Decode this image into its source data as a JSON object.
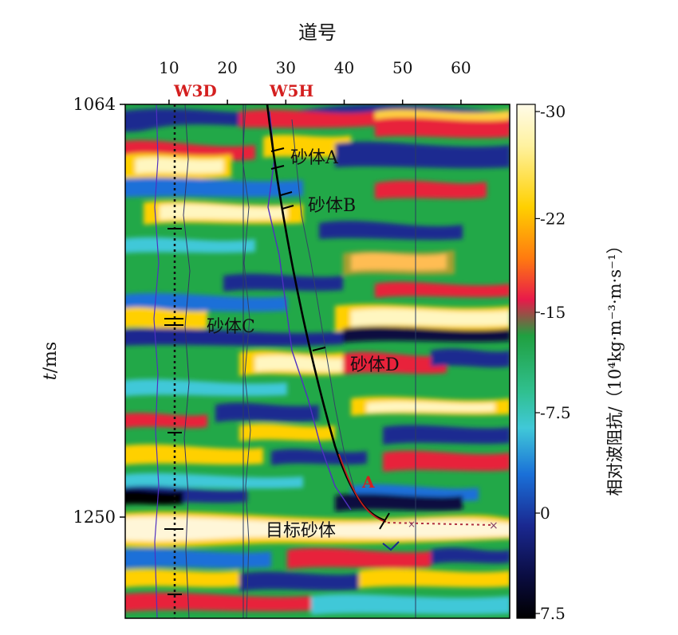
{
  "x_axis": {
    "title": "道号",
    "ticks": [
      {
        "value": 10,
        "label": "10"
      },
      {
        "value": 20,
        "label": "20"
      },
      {
        "value": 30,
        "label": "30"
      },
      {
        "value": 40,
        "label": "40"
      },
      {
        "value": 50,
        "label": "50"
      },
      {
        "value": 60,
        "label": "60"
      }
    ]
  },
  "y_axis": {
    "title_italic": "t",
    "title_rest": "/ms",
    "ticks": [
      {
        "value": 1064,
        "label": "1064"
      },
      {
        "value": 1250,
        "label": "1250"
      }
    ]
  },
  "wells": [
    {
      "name": "W3D",
      "color": "#d42020"
    },
    {
      "name": "W5H",
      "color": "#d42020"
    }
  ],
  "annotations": {
    "sand_a": "砂体A",
    "sand_b": "砂体B",
    "sand_c": "砂体C",
    "sand_d": "砂体D",
    "target": "目标砂体",
    "point_a": "A"
  },
  "colorbar": {
    "title": "相对波阻抗/（10⁴kg·m⁻³·m·s⁻¹）",
    "ticks": [
      {
        "value": -30,
        "label": "-30"
      },
      {
        "value": -22,
        "label": "-22"
      },
      {
        "value": -15,
        "label": "-15"
      },
      {
        "value": -7.5,
        "label": "-7.5"
      },
      {
        "value": 0,
        "label": "0"
      },
      {
        "value": 7.5,
        "label": "7.5"
      }
    ],
    "stops": [
      "#fffbe0",
      "#ffe060",
      "#ff8a20",
      "#e8203a",
      "#20b040",
      "#30c0c8",
      "#1070d8",
      "#141a80",
      "#000000"
    ]
  }
}
